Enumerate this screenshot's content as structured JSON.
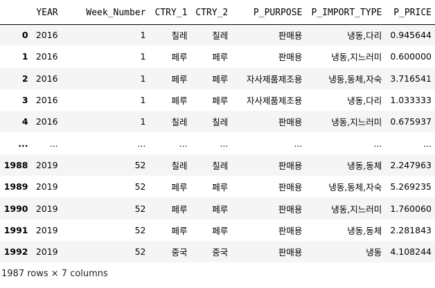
{
  "table": {
    "columns": [
      "",
      "YEAR",
      "Week_Number",
      "CTRY_1",
      "CTRY_2",
      "P_PURPOSE",
      "P_IMPORT_TYPE",
      "P_PRICE"
    ],
    "rows": [
      {
        "idx": "0",
        "year": "2016",
        "week": "1",
        "ctry1": "칠레",
        "ctry2": "칠레",
        "purpose": "판매용",
        "import": "냉동,다리",
        "price": "0.945644"
      },
      {
        "idx": "1",
        "year": "2016",
        "week": "1",
        "ctry1": "페루",
        "ctry2": "페루",
        "purpose": "판매용",
        "import": "냉동,지느러미",
        "price": "0.600000"
      },
      {
        "idx": "2",
        "year": "2016",
        "week": "1",
        "ctry1": "페루",
        "ctry2": "페루",
        "purpose": "자사제품제조용",
        "import": "냉동,동체,자숙",
        "price": "3.716541"
      },
      {
        "idx": "3",
        "year": "2016",
        "week": "1",
        "ctry1": "페루",
        "ctry2": "페루",
        "purpose": "자사제품제조용",
        "import": "냉동,다리",
        "price": "1.033333"
      },
      {
        "idx": "4",
        "year": "2016",
        "week": "1",
        "ctry1": "칠레",
        "ctry2": "칠레",
        "purpose": "판매용",
        "import": "냉동,지느러미",
        "price": "0.675937"
      },
      {
        "idx": "...",
        "year": "...",
        "week": "...",
        "ctry1": "...",
        "ctry2": "...",
        "purpose": "...",
        "import": "...",
        "price": "..."
      },
      {
        "idx": "1988",
        "year": "2019",
        "week": "52",
        "ctry1": "칠레",
        "ctry2": "칠레",
        "purpose": "판매용",
        "import": "냉동,동체",
        "price": "2.247963"
      },
      {
        "idx": "1989",
        "year": "2019",
        "week": "52",
        "ctry1": "페루",
        "ctry2": "페루",
        "purpose": "판매용",
        "import": "냉동,동체,자숙",
        "price": "5.269235"
      },
      {
        "idx": "1990",
        "year": "2019",
        "week": "52",
        "ctry1": "페루",
        "ctry2": "페루",
        "purpose": "판매용",
        "import": "냉동,지느러미",
        "price": "1.760060"
      },
      {
        "idx": "1991",
        "year": "2019",
        "week": "52",
        "ctry1": "페루",
        "ctry2": "페루",
        "purpose": "판매용",
        "import": "냉동,동체",
        "price": "2.281843"
      },
      {
        "idx": "1992",
        "year": "2019",
        "week": "52",
        "ctry1": "중국",
        "ctry2": "중국",
        "purpose": "판매용",
        "import": "냉동",
        "price": "4.108244"
      }
    ]
  },
  "footer": {
    "shape_text": "1987 rows × 7 columns"
  }
}
